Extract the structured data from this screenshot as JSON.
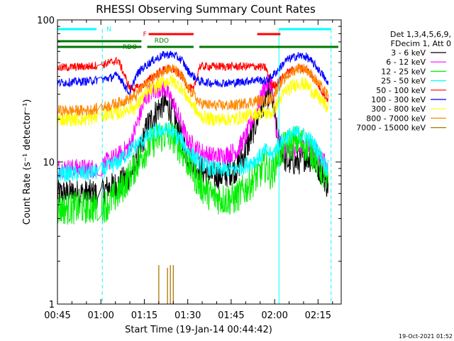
{
  "chart_data": {
    "type": "line",
    "title": "RHESSI Observing Summary Count Rates",
    "xlabel": "Start Time (19-Jan-14 00:44:42)",
    "ylabel": "Count Rate (s⁻¹ detector⁻¹)",
    "yscale": "log",
    "ylim": [
      1,
      100
    ],
    "xlim_minutes": [
      45,
      143
    ],
    "x_ticks": [
      {
        "label": "00:45",
        "min": 45
      },
      {
        "label": "01:00",
        "min": 60
      },
      {
        "label": "01:15",
        "min": 75
      },
      {
        "label": "01:30",
        "min": 90
      },
      {
        "label": "01:45",
        "min": 105
      },
      {
        "label": "02:00",
        "min": 120
      },
      {
        "label": "02:15",
        "min": 135
      }
    ],
    "y_ticks": [
      {
        "label": "1",
        "value": 1
      },
      {
        "label": "10",
        "value": 10
      },
      {
        "label": "100",
        "value": 100
      }
    ],
    "legend_header": [
      "Det 1,3,4,5,6,9,",
      "FDecim 1, Att 0"
    ],
    "legend_placement": "right",
    "series": [
      {
        "name": "3 - 6 keV",
        "color": "#000000",
        "noise": 0.1,
        "gap": true,
        "points": [
          [
            45,
            6
          ],
          [
            60,
            6
          ],
          [
            62,
            6.5
          ],
          [
            66,
            7
          ],
          [
            70,
            8
          ],
          [
            73,
            11
          ],
          [
            76,
            18
          ],
          [
            80,
            24
          ],
          [
            82,
            26
          ],
          [
            85,
            22
          ],
          [
            88,
            14
          ],
          [
            90,
            11
          ],
          [
            94,
            9
          ],
          [
            98,
            8
          ],
          [
            102,
            8
          ],
          [
            107,
            9
          ],
          [
            110,
            12
          ],
          [
            114,
            20
          ],
          [
            117,
            29
          ],
          [
            119,
            30
          ],
          [
            121,
            15
          ],
          [
            124,
            10
          ],
          [
            128,
            10
          ],
          [
            131,
            11
          ],
          [
            134,
            10
          ],
          [
            137,
            8
          ],
          [
            138,
            7
          ]
        ]
      },
      {
        "name": "6 - 12 keV",
        "color": "#ff00ff",
        "noise": 0.07,
        "gap": true,
        "points": [
          [
            45,
            9
          ],
          [
            60,
            9
          ],
          [
            62,
            10
          ],
          [
            66,
            11
          ],
          [
            70,
            13
          ],
          [
            73,
            20
          ],
          [
            76,
            30
          ],
          [
            80,
            33
          ],
          [
            82,
            33
          ],
          [
            85,
            26
          ],
          [
            88,
            18
          ],
          [
            90,
            14
          ],
          [
            94,
            12
          ],
          [
            98,
            11
          ],
          [
            102,
            11
          ],
          [
            107,
            12
          ],
          [
            110,
            15
          ],
          [
            114,
            24
          ],
          [
            117,
            35
          ],
          [
            119,
            36
          ],
          [
            121,
            14
          ],
          [
            124,
            12
          ],
          [
            128,
            12
          ],
          [
            131,
            13
          ],
          [
            134,
            12
          ],
          [
            137,
            10
          ],
          [
            138,
            9
          ]
        ]
      },
      {
        "name": "12 - 25 keV",
        "color": "#00ee00",
        "noise": 0.12,
        "gap": true,
        "points": [
          [
            45,
            4.7
          ],
          [
            55,
            4.8
          ],
          [
            60,
            4.8
          ],
          [
            62,
            5
          ],
          [
            66,
            6
          ],
          [
            70,
            8
          ],
          [
            74,
            11
          ],
          [
            78,
            14
          ],
          [
            82,
            15.5
          ],
          [
            85,
            15
          ],
          [
            88,
            12
          ],
          [
            90,
            10
          ],
          [
            94,
            7
          ],
          [
            98,
            5.8
          ],
          [
            102,
            5.5
          ],
          [
            106,
            5.5
          ],
          [
            110,
            6.5
          ],
          [
            114,
            8
          ],
          [
            117,
            9.5
          ],
          [
            119,
            8
          ],
          [
            121,
            11
          ],
          [
            124,
            13
          ],
          [
            128,
            14
          ],
          [
            131,
            13
          ],
          [
            134,
            11
          ],
          [
            137,
            8
          ],
          [
            138,
            7
          ]
        ]
      },
      {
        "name": "25 - 50 keV",
        "color": "#00ffff",
        "noise": 0.06,
        "gap": true,
        "points": [
          [
            45,
            8.3
          ],
          [
            55,
            8.3
          ],
          [
            60,
            8.6
          ],
          [
            62,
            9
          ],
          [
            66,
            10
          ],
          [
            70,
            12
          ],
          [
            74,
            14
          ],
          [
            78,
            16
          ],
          [
            82,
            17
          ],
          [
            85,
            16
          ],
          [
            88,
            14
          ],
          [
            90,
            12
          ],
          [
            94,
            10
          ],
          [
            98,
            9
          ],
          [
            102,
            8.8
          ],
          [
            106,
            8.8
          ],
          [
            110,
            9.5
          ],
          [
            114,
            10.5
          ],
          [
            117,
            12
          ],
          [
            119,
            11
          ],
          [
            121,
            13
          ],
          [
            124,
            15
          ],
          [
            128,
            16
          ],
          [
            131,
            15
          ],
          [
            134,
            13
          ],
          [
            137,
            10
          ],
          [
            138,
            9
          ]
        ]
      },
      {
        "name": "50 - 100 keV",
        "color": "#ff0000",
        "noise": 0.03,
        "gap": true,
        "points": [
          [
            45,
            46
          ],
          [
            55,
            47
          ],
          [
            60,
            48
          ],
          [
            63,
            50
          ],
          [
            66,
            52
          ],
          [
            70,
            33
          ],
          [
            72,
            33
          ],
          [
            74,
            34
          ],
          [
            78,
            40
          ],
          [
            82,
            45
          ],
          [
            85,
            45
          ],
          [
            88,
            40
          ],
          [
            90,
            34
          ],
          [
            92,
            32
          ],
          [
            94,
            47
          ],
          [
            98,
            47
          ],
          [
            102,
            47
          ],
          [
            106,
            47
          ],
          [
            110,
            47
          ],
          [
            114,
            47
          ],
          [
            117,
            46
          ],
          [
            119,
            34
          ],
          [
            121,
            36
          ],
          [
            124,
            42
          ],
          [
            128,
            46
          ],
          [
            131,
            45
          ],
          [
            134,
            38
          ],
          [
            137,
            30
          ],
          [
            138,
            28
          ]
        ]
      },
      {
        "name": "100 - 300 keV",
        "color": "#0000ff",
        "noise": 0.03,
        "gap": true,
        "points": [
          [
            45,
            36
          ],
          [
            55,
            37
          ],
          [
            60,
            38
          ],
          [
            63,
            39
          ],
          [
            66,
            41
          ],
          [
            70,
            30
          ],
          [
            72,
            40
          ],
          [
            74,
            45
          ],
          [
            78,
            52
          ],
          [
            82,
            57
          ],
          [
            85,
            57
          ],
          [
            88,
            52
          ],
          [
            90,
            44
          ],
          [
            92,
            40
          ],
          [
            94,
            37
          ],
          [
            98,
            36
          ],
          [
            102,
            36
          ],
          [
            106,
            36
          ],
          [
            110,
            37
          ],
          [
            114,
            38
          ],
          [
            117,
            37
          ],
          [
            119,
            40
          ],
          [
            121,
            44
          ],
          [
            124,
            52
          ],
          [
            128,
            56
          ],
          [
            131,
            55
          ],
          [
            134,
            48
          ],
          [
            137,
            40
          ],
          [
            138,
            36
          ]
        ]
      },
      {
        "name": "300 - 800 keV",
        "color": "#ffff00",
        "noise": 0.05,
        "gap": true,
        "points": [
          [
            45,
            20
          ],
          [
            55,
            20
          ],
          [
            60,
            21
          ],
          [
            63,
            22
          ],
          [
            66,
            22
          ],
          [
            70,
            24
          ],
          [
            72,
            24
          ],
          [
            74,
            28
          ],
          [
            78,
            33
          ],
          [
            82,
            37
          ],
          [
            85,
            37
          ],
          [
            88,
            33
          ],
          [
            90,
            28
          ],
          [
            92,
            25
          ],
          [
            94,
            21
          ],
          [
            98,
            20
          ],
          [
            102,
            20
          ],
          [
            106,
            20
          ],
          [
            110,
            21
          ],
          [
            114,
            22
          ],
          [
            117,
            22
          ],
          [
            119,
            22
          ],
          [
            121,
            26
          ],
          [
            124,
            32
          ],
          [
            128,
            36
          ],
          [
            131,
            35
          ],
          [
            134,
            30
          ],
          [
            137,
            26
          ],
          [
            138,
            24
          ]
        ]
      },
      {
        "name": "800 - 7000 keV",
        "color": "#ff8800",
        "noise": 0.04,
        "gap": true,
        "points": [
          [
            45,
            23
          ],
          [
            55,
            23
          ],
          [
            60,
            24
          ],
          [
            63,
            25
          ],
          [
            66,
            26
          ],
          [
            70,
            28
          ],
          [
            72,
            29
          ],
          [
            74,
            33
          ],
          [
            78,
            39
          ],
          [
            82,
            45
          ],
          [
            85,
            45
          ],
          [
            88,
            40
          ],
          [
            90,
            33
          ],
          [
            92,
            30
          ],
          [
            94,
            26
          ],
          [
            98,
            25
          ],
          [
            102,
            25
          ],
          [
            106,
            25
          ],
          [
            110,
            26
          ],
          [
            114,
            27
          ],
          [
            117,
            27
          ],
          [
            119,
            28
          ],
          [
            121,
            33
          ],
          [
            124,
            40
          ],
          [
            128,
            46
          ],
          [
            131,
            45
          ],
          [
            134,
            38
          ],
          [
            137,
            32
          ],
          [
            138,
            30
          ]
        ]
      },
      {
        "name": "7000 - 15000 keV",
        "color": "#aa7700",
        "noise": 0.0,
        "gap": false,
        "points": [
          [
            45,
            1
          ],
          [
            143,
            1
          ]
        ],
        "spikes": [
          [
            80,
            1.88
          ],
          [
            83,
            1.8
          ],
          [
            84,
            1.88
          ],
          [
            85,
            1.88
          ]
        ]
      }
    ],
    "annotations": {
      "saa": {
        "label": "N",
        "color": "#00ffff",
        "bars_min": [
          [
            45,
            58.5
          ],
          [
            121.5,
            139.5
          ]
        ],
        "dashed_min": [
          60.5,
          139.5
        ],
        "solid_min": [
          45,
          121.5
        ]
      },
      "flare": {
        "label": "F",
        "color": "#ff0000",
        "bars_min": [
          [
            76.5,
            92
          ],
          [
            114,
            122
          ]
        ]
      },
      "night": {
        "label": "RDO",
        "color": "#007700",
        "bars_min": [
          [
            45,
            74
          ],
          [
            76,
            92
          ],
          [
            94,
            120
          ],
          [
            120,
            142
          ]
        ],
        "labels": [
          {
            "text": "RDO",
            "min": 67.5
          },
          {
            "text": "RDO",
            "min": 78.5
          }
        ]
      }
    },
    "grid": false
  },
  "timestamp": "19-Oct-2021 01:52"
}
